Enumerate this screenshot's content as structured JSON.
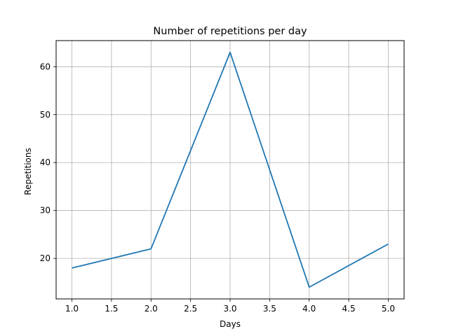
{
  "chart_data": {
    "type": "line",
    "title": "Number of repetitions per day",
    "xlabel": "Days",
    "ylabel": "Repetitions",
    "x": [
      1,
      2,
      3,
      4,
      5
    ],
    "series": [
      {
        "values": [
          18,
          22,
          63,
          14,
          23
        ],
        "color": "#1f77b4"
      }
    ],
    "xlim": [
      0.8,
      5.2
    ],
    "ylim": [
      11.55,
      65.45
    ],
    "xticks": [
      "1.0",
      "1.5",
      "2.0",
      "2.5",
      "3.0",
      "3.5",
      "4.0",
      "4.5",
      "5.0"
    ],
    "yticks": [
      "20",
      "30",
      "40",
      "50",
      "60"
    ],
    "grid": true,
    "legend": "none"
  }
}
